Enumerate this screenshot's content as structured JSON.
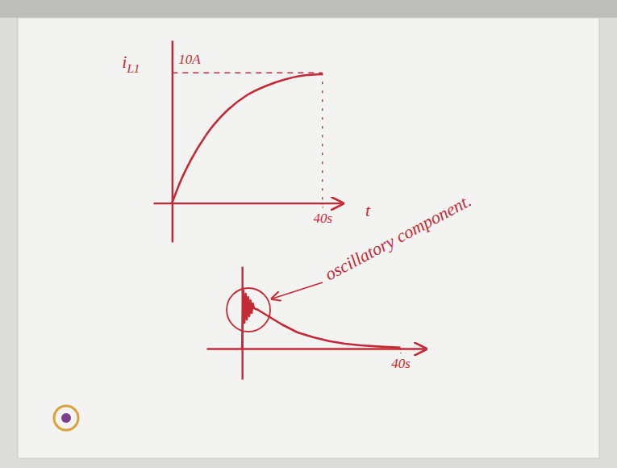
{
  "chart_data": [
    {
      "type": "line",
      "y_label": "iL1",
      "x_label": "t",
      "x": [
        0,
        2,
        5,
        10,
        15,
        20,
        25,
        30,
        35,
        40
      ],
      "values": [
        0,
        1.5,
        3.3,
        5.6,
        7.2,
        8.3,
        9.0,
        9.5,
        9.8,
        9.9
      ],
      "color": "#c42a36",
      "xlim": [
        -5,
        45
      ],
      "ylim": [
        -3,
        12.5
      ],
      "xticks": [
        {
          "value": 40,
          "label": "40s"
        }
      ],
      "yticks": [
        {
          "value": 10,
          "label": "10A"
        }
      ],
      "grid": true
    },
    {
      "type": "line",
      "annotation": "oscillatory component.",
      "x": [
        0,
        0.3,
        0.6,
        0.9,
        1.2,
        1.5,
        1.8,
        2.1,
        2.4,
        2.7,
        3.0,
        4,
        6,
        8,
        10,
        14,
        18,
        22,
        26,
        30,
        35,
        40
      ],
      "values": [
        0,
        18,
        8,
        17,
        9,
        16,
        10,
        15,
        11,
        14,
        12.5,
        12,
        10.5,
        9,
        7.5,
        5,
        3.5,
        2.3,
        1.5,
        1,
        0.6,
        0.3
      ],
      "color": "#c42a36",
      "xlim": [
        -9,
        46
      ],
      "ylim": [
        -9.5,
        25.5
      ],
      "xticks": [
        {
          "value": 40,
          "label": "40s"
        }
      ],
      "tick_labels": "x"
    }
  ]
}
